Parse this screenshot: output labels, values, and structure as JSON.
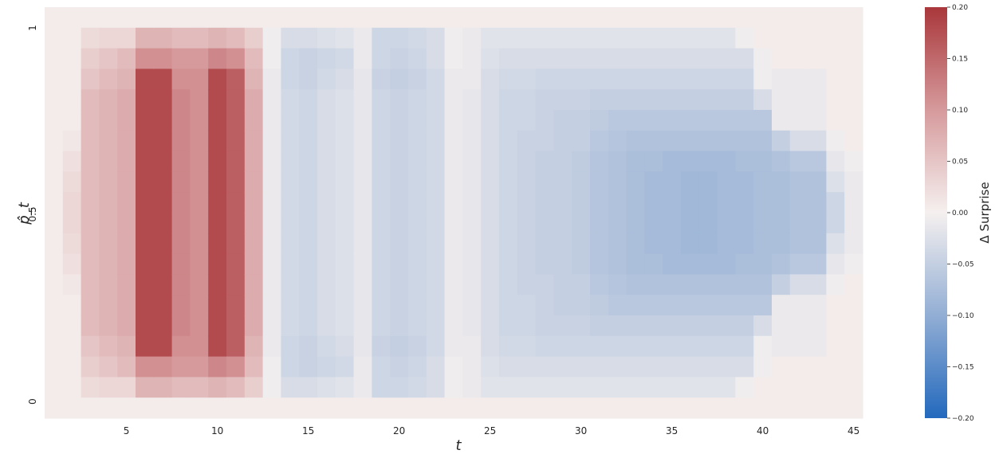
{
  "chart_data": {
    "type": "heatmap",
    "colormap": "vlag",
    "x_ticks": [
      "5",
      "10",
      "15",
      "20",
      "25",
      "30",
      "35",
      "40",
      "45"
    ],
    "y_ticks": [
      "0",
      "0.5",
      "1"
    ],
    "xlabel": "t",
    "ylabel": "p̂_t",
    "colorbar_label": "Δ Surprise",
    "vmin": -0.2,
    "vmax": 0.2,
    "colorbar_ticks": [
      "−0.20",
      "−0.15",
      "−0.10",
      "−0.05",
      "0.00",
      "0.05",
      "0.10",
      "0.15",
      "0.20"
    ],
    "cells": {
      "t": [
        1,
        2,
        3,
        4,
        5,
        6,
        7,
        8,
        9,
        10,
        11,
        12,
        13,
        14,
        15,
        16,
        17,
        18,
        19,
        20,
        21,
        22,
        23,
        24,
        25,
        26,
        27,
        28,
        29,
        30,
        31,
        32,
        33,
        34,
        35,
        36,
        37,
        38,
        39,
        40,
        41,
        42,
        43,
        44,
        45
      ],
      "p_rows": 20,
      "values": [
        [
          0.005,
          0.005,
          0.005,
          0.005,
          0.005,
          0.005,
          0.005,
          0.005,
          0.005,
          0.005,
          0.005,
          0.005,
          0.005,
          0.005,
          0.005,
          0.005,
          0.005,
          0.005,
          0.005,
          0.005
        ],
        [
          0.005,
          0.005,
          0.005,
          0.005,
          0.005,
          0.005,
          0.01,
          0.02,
          0.025,
          0.03,
          0.03,
          0.025,
          0.02,
          0.01,
          0.005,
          0.005,
          0.005,
          0.005,
          0.005,
          0.005
        ],
        [
          0.005,
          0.025,
          0.04,
          0.05,
          0.06,
          0.06,
          0.06,
          0.06,
          0.06,
          0.06,
          0.06,
          0.06,
          0.06,
          0.06,
          0.06,
          0.06,
          0.05,
          0.04,
          0.025,
          0.005
        ],
        [
          0.005,
          0.03,
          0.05,
          0.06,
          0.07,
          0.07,
          0.07,
          0.07,
          0.07,
          0.07,
          0.07,
          0.07,
          0.07,
          0.07,
          0.07,
          0.07,
          0.06,
          0.05,
          0.03,
          0.005
        ],
        [
          0.005,
          0.03,
          0.06,
          0.07,
          0.08,
          0.08,
          0.08,
          0.08,
          0.08,
          0.08,
          0.08,
          0.08,
          0.08,
          0.08,
          0.08,
          0.08,
          0.07,
          0.06,
          0.03,
          0.005
        ],
        [
          0.005,
          0.07,
          0.11,
          0.18,
          0.18,
          0.18,
          0.18,
          0.18,
          0.18,
          0.18,
          0.18,
          0.18,
          0.18,
          0.18,
          0.18,
          0.18,
          0.18,
          0.11,
          0.07,
          0.005
        ],
        [
          0.005,
          0.07,
          0.11,
          0.18,
          0.18,
          0.18,
          0.18,
          0.18,
          0.18,
          0.18,
          0.18,
          0.18,
          0.18,
          0.18,
          0.18,
          0.18,
          0.18,
          0.11,
          0.07,
          0.005
        ],
        [
          0.005,
          0.06,
          0.1,
          0.11,
          0.12,
          0.12,
          0.12,
          0.12,
          0.12,
          0.12,
          0.12,
          0.12,
          0.12,
          0.12,
          0.12,
          0.12,
          0.11,
          0.1,
          0.06,
          0.005
        ],
        [
          0.005,
          0.06,
          0.1,
          0.11,
          0.11,
          0.11,
          0.11,
          0.11,
          0.11,
          0.11,
          0.11,
          0.11,
          0.11,
          0.11,
          0.11,
          0.11,
          0.11,
          0.1,
          0.06,
          0.005
        ],
        [
          0.005,
          0.07,
          0.12,
          0.18,
          0.18,
          0.18,
          0.18,
          0.18,
          0.18,
          0.18,
          0.18,
          0.18,
          0.18,
          0.18,
          0.18,
          0.18,
          0.18,
          0.12,
          0.07,
          0.005
        ],
        [
          0.005,
          0.06,
          0.11,
          0.16,
          0.16,
          0.16,
          0.16,
          0.16,
          0.16,
          0.16,
          0.16,
          0.16,
          0.16,
          0.16,
          0.16,
          0.16,
          0.16,
          0.11,
          0.06,
          0.005
        ],
        [
          0.005,
          0.04,
          0.06,
          0.07,
          0.08,
          0.08,
          0.08,
          0.08,
          0.08,
          0.08,
          0.08,
          0.08,
          0.08,
          0.08,
          0.08,
          0.08,
          0.07,
          0.06,
          0.04,
          0.005
        ],
        [
          0.005,
          -0.005,
          -0.005,
          -0.01,
          -0.01,
          -0.01,
          -0.01,
          -0.01,
          -0.01,
          -0.01,
          -0.01,
          -0.01,
          -0.01,
          -0.01,
          -0.01,
          -0.01,
          -0.01,
          -0.005,
          -0.005,
          0.005
        ],
        [
          0.005,
          -0.03,
          -0.04,
          -0.04,
          -0.035,
          -0.035,
          -0.035,
          -0.035,
          -0.035,
          -0.035,
          -0.035,
          -0.035,
          -0.035,
          -0.035,
          -0.035,
          -0.035,
          -0.04,
          -0.04,
          -0.03,
          0.005
        ],
        [
          0.005,
          -0.03,
          -0.045,
          -0.045,
          -0.04,
          -0.04,
          -0.04,
          -0.04,
          -0.04,
          -0.04,
          -0.04,
          -0.04,
          -0.04,
          -0.04,
          -0.04,
          -0.04,
          -0.045,
          -0.045,
          -0.03,
          0.005
        ],
        [
          0.005,
          -0.025,
          -0.04,
          -0.035,
          -0.03,
          -0.03,
          -0.03,
          -0.03,
          -0.03,
          -0.03,
          -0.03,
          -0.03,
          -0.03,
          -0.03,
          -0.03,
          -0.03,
          -0.035,
          -0.04,
          -0.025,
          0.005
        ],
        [
          0.005,
          -0.02,
          -0.035,
          -0.03,
          -0.025,
          -0.025,
          -0.025,
          -0.025,
          -0.025,
          -0.025,
          -0.025,
          -0.025,
          -0.025,
          -0.025,
          -0.025,
          -0.025,
          -0.03,
          -0.035,
          -0.02,
          0.005
        ],
        [
          0.005,
          -0.01,
          -0.01,
          -0.015,
          -0.015,
          -0.015,
          -0.015,
          -0.015,
          -0.015,
          -0.015,
          -0.015,
          -0.015,
          -0.015,
          -0.015,
          -0.015,
          -0.015,
          -0.015,
          -0.01,
          -0.01,
          0.005
        ],
        [
          0.005,
          -0.04,
          -0.04,
          -0.045,
          -0.04,
          -0.04,
          -0.04,
          -0.04,
          -0.04,
          -0.04,
          -0.04,
          -0.04,
          -0.04,
          -0.04,
          -0.04,
          -0.04,
          -0.045,
          -0.04,
          -0.04,
          0.005
        ],
        [
          0.005,
          -0.04,
          -0.045,
          -0.05,
          -0.045,
          -0.045,
          -0.045,
          -0.045,
          -0.045,
          -0.045,
          -0.045,
          -0.045,
          -0.045,
          -0.045,
          -0.045,
          -0.045,
          -0.05,
          -0.045,
          -0.04,
          0.005
        ],
        [
          0.005,
          -0.035,
          -0.04,
          -0.045,
          -0.04,
          -0.04,
          -0.04,
          -0.04,
          -0.04,
          -0.04,
          -0.04,
          -0.04,
          -0.04,
          -0.04,
          -0.04,
          -0.04,
          -0.045,
          -0.04,
          -0.035,
          0.005
        ],
        [
          0.005,
          -0.03,
          -0.03,
          -0.035,
          -0.035,
          -0.035,
          -0.035,
          -0.035,
          -0.035,
          -0.035,
          -0.035,
          -0.035,
          -0.035,
          -0.035,
          -0.035,
          -0.035,
          -0.035,
          -0.03,
          -0.03,
          0.005
        ],
        [
          0.005,
          -0.005,
          -0.005,
          -0.01,
          -0.01,
          -0.01,
          -0.01,
          -0.01,
          -0.01,
          -0.01,
          -0.01,
          -0.01,
          -0.01,
          -0.01,
          -0.01,
          -0.01,
          -0.01,
          -0.005,
          -0.005,
          0.005
        ],
        [
          0.005,
          -0.01,
          -0.01,
          -0.01,
          -0.015,
          -0.015,
          -0.015,
          -0.015,
          -0.015,
          -0.015,
          -0.015,
          -0.015,
          -0.015,
          -0.015,
          -0.015,
          -0.015,
          -0.01,
          -0.01,
          -0.01,
          0.005
        ],
        [
          0.005,
          -0.02,
          -0.025,
          -0.03,
          -0.03,
          -0.03,
          -0.03,
          -0.03,
          -0.03,
          -0.03,
          -0.03,
          -0.03,
          -0.03,
          -0.03,
          -0.03,
          -0.03,
          -0.03,
          -0.025,
          -0.02,
          0.005
        ],
        [
          0.005,
          -0.02,
          -0.03,
          -0.035,
          -0.04,
          -0.04,
          -0.04,
          -0.04,
          -0.04,
          -0.04,
          -0.04,
          -0.04,
          -0.04,
          -0.04,
          -0.04,
          -0.04,
          -0.035,
          -0.03,
          -0.02,
          0.005
        ],
        [
          0.005,
          -0.02,
          -0.03,
          -0.035,
          -0.04,
          -0.04,
          -0.045,
          -0.045,
          -0.045,
          -0.045,
          -0.045,
          -0.045,
          -0.045,
          -0.045,
          -0.04,
          -0.04,
          -0.035,
          -0.03,
          -0.02,
          0.005
        ],
        [
          0.005,
          -0.02,
          -0.03,
          -0.04,
          -0.045,
          -0.045,
          -0.045,
          -0.05,
          -0.05,
          -0.05,
          -0.05,
          -0.05,
          -0.05,
          -0.045,
          -0.045,
          -0.045,
          -0.04,
          -0.03,
          -0.02,
          0.005
        ],
        [
          0.005,
          -0.02,
          -0.03,
          -0.04,
          -0.045,
          -0.05,
          -0.05,
          -0.05,
          -0.05,
          -0.05,
          -0.05,
          -0.05,
          -0.05,
          -0.05,
          -0.05,
          -0.045,
          -0.04,
          -0.03,
          -0.02,
          0.005
        ],
        [
          0.005,
          -0.02,
          -0.03,
          -0.04,
          -0.045,
          -0.05,
          -0.05,
          -0.055,
          -0.055,
          -0.055,
          -0.055,
          -0.055,
          -0.055,
          -0.05,
          -0.05,
          -0.045,
          -0.04,
          -0.03,
          -0.02,
          0.005
        ],
        [
          0.005,
          -0.02,
          -0.03,
          -0.04,
          -0.05,
          -0.055,
          -0.06,
          -0.065,
          -0.065,
          -0.065,
          -0.065,
          -0.065,
          -0.065,
          -0.06,
          -0.055,
          -0.05,
          -0.04,
          -0.03,
          -0.02,
          0.005
        ],
        [
          0.005,
          -0.02,
          -0.03,
          -0.04,
          -0.05,
          -0.06,
          -0.065,
          -0.07,
          -0.07,
          -0.07,
          -0.07,
          -0.07,
          -0.07,
          -0.065,
          -0.06,
          -0.05,
          -0.04,
          -0.03,
          -0.02,
          0.005
        ],
        [
          0.005,
          -0.02,
          -0.03,
          -0.04,
          -0.05,
          -0.06,
          -0.07,
          -0.075,
          -0.075,
          -0.075,
          -0.075,
          -0.075,
          -0.075,
          -0.07,
          -0.06,
          -0.05,
          -0.04,
          -0.03,
          -0.02,
          0.005
        ],
        [
          0.005,
          -0.02,
          -0.03,
          -0.04,
          -0.05,
          -0.06,
          -0.07,
          -0.075,
          -0.08,
          -0.08,
          -0.08,
          -0.08,
          -0.075,
          -0.07,
          -0.06,
          -0.05,
          -0.04,
          -0.03,
          -0.02,
          0.005
        ],
        [
          0.005,
          -0.02,
          -0.03,
          -0.04,
          -0.05,
          -0.06,
          -0.07,
          -0.08,
          -0.08,
          -0.08,
          -0.08,
          -0.08,
          -0.08,
          -0.07,
          -0.06,
          -0.05,
          -0.04,
          -0.03,
          -0.02,
          0.005
        ],
        [
          0.005,
          -0.02,
          -0.03,
          -0.04,
          -0.05,
          -0.06,
          -0.07,
          -0.08,
          -0.085,
          -0.085,
          -0.085,
          -0.085,
          -0.08,
          -0.07,
          -0.06,
          -0.05,
          -0.04,
          -0.03,
          -0.02,
          0.005
        ],
        [
          0.005,
          -0.02,
          -0.03,
          -0.04,
          -0.05,
          -0.06,
          -0.07,
          -0.08,
          -0.085,
          -0.085,
          -0.085,
          -0.085,
          -0.08,
          -0.07,
          -0.06,
          -0.05,
          -0.04,
          -0.03,
          -0.02,
          0.005
        ],
        [
          0.005,
          -0.02,
          -0.03,
          -0.04,
          -0.05,
          -0.06,
          -0.07,
          -0.08,
          -0.08,
          -0.08,
          -0.08,
          -0.08,
          -0.08,
          -0.07,
          -0.06,
          -0.05,
          -0.04,
          -0.03,
          -0.02,
          0.005
        ],
        [
          0.005,
          -0.005,
          -0.03,
          -0.04,
          -0.05,
          -0.06,
          -0.07,
          -0.075,
          -0.08,
          -0.08,
          -0.08,
          -0.08,
          -0.075,
          -0.07,
          -0.06,
          -0.05,
          -0.04,
          -0.03,
          -0.005,
          0.005
        ],
        [
          0.005,
          0.005,
          -0.005,
          -0.005,
          -0.03,
          -0.06,
          -0.07,
          -0.075,
          -0.075,
          -0.075,
          -0.075,
          -0.075,
          -0.075,
          -0.07,
          -0.06,
          -0.03,
          -0.005,
          -0.005,
          0.005,
          0.005
        ],
        [
          0.005,
          0.005,
          0.005,
          -0.01,
          -0.01,
          -0.01,
          -0.05,
          -0.07,
          -0.075,
          -0.075,
          -0.075,
          -0.075,
          -0.07,
          -0.05,
          -0.01,
          -0.01,
          -0.01,
          0.005,
          0.005,
          0.005
        ],
        [
          0.005,
          0.005,
          0.005,
          -0.01,
          -0.01,
          -0.01,
          -0.03,
          -0.06,
          -0.07,
          -0.07,
          -0.07,
          -0.07,
          -0.06,
          -0.03,
          -0.01,
          -0.01,
          -0.01,
          0.005,
          0.005,
          0.005
        ],
        [
          0.005,
          0.005,
          0.005,
          -0.01,
          -0.01,
          -0.01,
          -0.03,
          -0.06,
          -0.07,
          -0.07,
          -0.07,
          -0.07,
          -0.06,
          -0.03,
          -0.01,
          -0.01,
          -0.01,
          0.005,
          0.005,
          0.005
        ],
        [
          0.005,
          0.005,
          0.005,
          0.005,
          0.005,
          0.005,
          -0.005,
          -0.015,
          -0.025,
          -0.04,
          -0.04,
          -0.025,
          -0.015,
          -0.005,
          0.005,
          0.005,
          0.005,
          0.005,
          0.005,
          0.005
        ],
        [
          0.005,
          0.005,
          0.005,
          0.005,
          0.005,
          0.005,
          0.005,
          -0.005,
          -0.01,
          -0.01,
          -0.01,
          -0.01,
          -0.005,
          0.005,
          0.005,
          0.005,
          0.005,
          0.005,
          0.005,
          0.005
        ]
      ]
    }
  }
}
